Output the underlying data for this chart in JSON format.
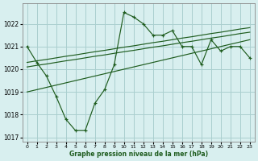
{
  "x": [
    0,
    1,
    2,
    3,
    4,
    5,
    6,
    7,
    8,
    9,
    10,
    11,
    12,
    13,
    14,
    15,
    16,
    17,
    18,
    19,
    20,
    21,
    22,
    23
  ],
  "y_main": [
    1021.0,
    1020.3,
    1019.7,
    1018.8,
    1017.8,
    1017.3,
    1017.3,
    1018.5,
    1019.1,
    1020.2,
    1022.5,
    1022.3,
    1022.0,
    1021.5,
    1021.5,
    1021.7,
    1021.0,
    1021.0,
    1020.2,
    1021.3,
    1020.8,
    1021.0,
    1021.0,
    1020.5
  ],
  "y_upper": [
    1020.3,
    1020.37,
    1020.43,
    1020.5,
    1020.57,
    1020.63,
    1020.7,
    1020.77,
    1020.83,
    1020.9,
    1020.97,
    1021.03,
    1021.1,
    1021.17,
    1021.23,
    1021.3,
    1021.37,
    1021.43,
    1021.5,
    1021.57,
    1021.63,
    1021.7,
    1021.77,
    1021.83
  ],
  "y_upper2": [
    1020.1,
    1020.17,
    1020.23,
    1020.3,
    1020.37,
    1020.43,
    1020.5,
    1020.57,
    1020.63,
    1020.7,
    1020.77,
    1020.83,
    1020.9,
    1020.97,
    1021.03,
    1021.1,
    1021.17,
    1021.23,
    1021.3,
    1021.37,
    1021.43,
    1021.5,
    1021.57,
    1021.63
  ],
  "y_lower": [
    1019.0,
    1019.1,
    1019.2,
    1019.3,
    1019.4,
    1019.5,
    1019.6,
    1019.7,
    1019.8,
    1019.9,
    1020.0,
    1020.1,
    1020.2,
    1020.3,
    1020.4,
    1020.5,
    1020.6,
    1020.7,
    1020.8,
    1020.9,
    1021.0,
    1021.1,
    1021.2,
    1021.3
  ],
  "line_color": "#1e5c1e",
  "bg_color": "#d8efef",
  "grid_color": "#aacfcf",
  "xlabel": "Graphe pression niveau de la mer (hPa)",
  "ylim": [
    1016.8,
    1022.9
  ],
  "xlim": [
    -0.5,
    23.5
  ],
  "yticks": [
    1017,
    1018,
    1019,
    1020,
    1021,
    1022
  ],
  "xticks": [
    0,
    1,
    2,
    3,
    4,
    5,
    6,
    7,
    8,
    9,
    10,
    11,
    12,
    13,
    14,
    15,
    16,
    17,
    18,
    19,
    20,
    21,
    22,
    23
  ]
}
